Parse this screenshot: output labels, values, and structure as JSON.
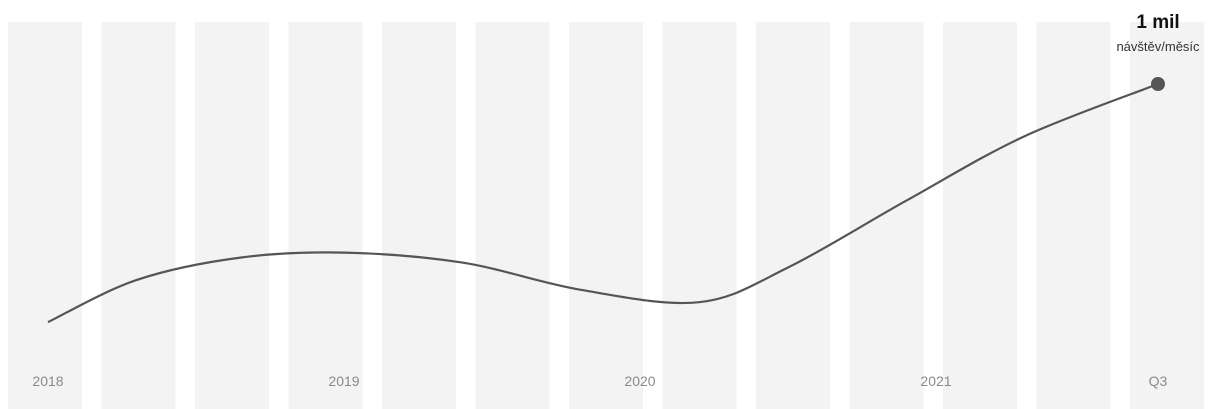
{
  "chart_data": {
    "type": "line",
    "title": "",
    "xlabel": "",
    "ylabel": "",
    "grid": false,
    "legend": "none",
    "x": [
      "2018",
      "2019",
      "2020",
      "2021",
      "Q3"
    ],
    "x_positions": [
      2018,
      2019,
      2020,
      2021,
      2021.75
    ],
    "xlim": [
      2018,
      2021.75
    ],
    "series": [
      {
        "color": "#555555",
        "points": [
          [
            2018.0,
            0.04
          ],
          [
            2018.3,
            0.21
          ],
          [
            2018.65,
            0.3
          ],
          [
            2019.0,
            0.32
          ],
          [
            2019.4,
            0.28
          ],
          [
            2019.8,
            0.17
          ],
          [
            2020.2,
            0.12
          ],
          [
            2020.5,
            0.26
          ],
          [
            2020.9,
            0.53
          ],
          [
            2021.3,
            0.79
          ],
          [
            2021.75,
            1.0
          ]
        ]
      }
    ],
    "annotation": {
      "value": "1 mil",
      "unit": "návštěv/měsíc"
    },
    "stripe_color": "#f3f3f3"
  }
}
